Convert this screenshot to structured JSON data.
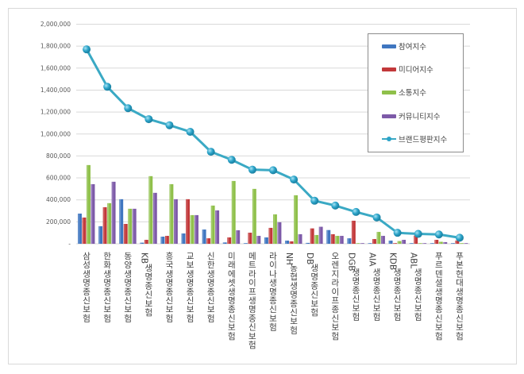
{
  "chart_data": {
    "type": "bar+line",
    "title": "",
    "xlabel": "",
    "ylabel": "",
    "ylim": [
      0,
      2000000
    ],
    "yticks": [
      "-",
      "200,000",
      "400,000",
      "600,000",
      "800,000",
      "1,000,000",
      "1,200,000",
      "1,400,000",
      "1,600,000",
      "1,800,000",
      "2,000,000"
    ],
    "grid": true,
    "legend_position": "upper-right",
    "categories": [
      "삼성생명종신보험",
      "한화생명종신보험",
      "동양생명종신보험",
      "KB생명종신보험",
      "흥국생명종신보험",
      "교보생명종신보험",
      "신한생명종신보험",
      "미래에셋생명종신보험",
      "메트라이프생명종신보험",
      "라이나생명종신보험",
      "NH농협생명종신보험",
      "DB생명종신보험",
      "오렌지라이프종신보험",
      "DGB생명종신보험",
      "AIA생명종신보험",
      "KDB생명종신보험",
      "ABL생명종신보험",
      "푸르덴셜생명종신보험",
      "푸본현대생명종신보험"
    ],
    "series": [
      {
        "name": "참여지수",
        "type": "bar",
        "color": "#3f76c0",
        "values": [
          275000,
          160000,
          406000,
          10000,
          65000,
          94000,
          130000,
          12000,
          5000,
          58000,
          29000,
          8000,
          125000,
          50000,
          2000,
          29000,
          2000,
          2000,
          2000
        ]
      },
      {
        "name": "미디어지수",
        "type": "bar",
        "color": "#c2383a",
        "values": [
          239000,
          333000,
          181000,
          36000,
          72000,
          406000,
          50000,
          58000,
          101000,
          145000,
          22000,
          140000,
          87000,
          210000,
          43000,
          5000,
          75000,
          36000,
          30000
        ]
      },
      {
        "name": "소통지수",
        "type": "bar",
        "color": "#8fc04a",
        "values": [
          717000,
          370000,
          319000,
          616000,
          543000,
          261000,
          348000,
          572000,
          500000,
          268000,
          442000,
          80000,
          72000,
          4000,
          108000,
          25000,
          3000,
          18000,
          3000
        ]
      },
      {
        "name": "커뮤니티지수",
        "type": "bar",
        "color": "#7d5aa8",
        "values": [
          543000,
          565000,
          319000,
          464000,
          406000,
          261000,
          304000,
          123000,
          72000,
          196000,
          87000,
          155000,
          72000,
          4000,
          72000,
          36000,
          3000,
          15000,
          3000
        ]
      },
      {
        "name": "브랜드평판지수",
        "type": "line",
        "color": "#3aa9c4",
        "values": [
          1771000,
          1430000,
          1235000,
          1135000,
          1080000,
          1020000,
          838000,
          765000,
          675000,
          670000,
          585000,
          392000,
          348000,
          290000,
          240000,
          100000,
          90000,
          85000,
          55000
        ]
      }
    ]
  },
  "legend": {
    "items": [
      {
        "label": "참여지수",
        "color": "#3f76c0",
        "kind": "bar"
      },
      {
        "label": "미디어지수",
        "color": "#c2383a",
        "kind": "bar"
      },
      {
        "label": "소통지수",
        "color": "#8fc04a",
        "kind": "bar"
      },
      {
        "label": "커뮤니티지수",
        "color": "#7d5aa8",
        "kind": "bar"
      },
      {
        "label": "브랜드평판지수",
        "color": "#3aa9c4",
        "kind": "line"
      }
    ]
  }
}
